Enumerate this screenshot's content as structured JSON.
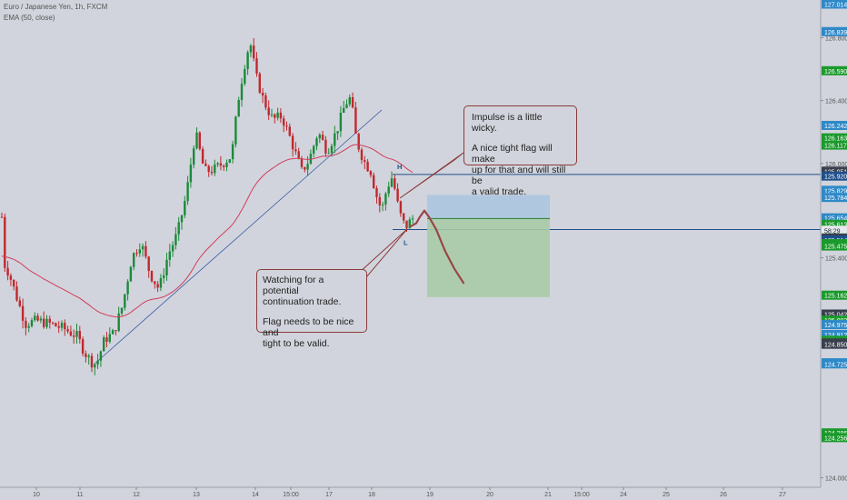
{
  "chart_data": {
    "type": "candlestick",
    "symbol": "Euro / Japanese Yen, 1h, FXCM",
    "indicator": "EMA (50, close)",
    "ylim": [
      123.94,
      127.04
    ],
    "x_ticks": [
      "10",
      "11",
      "12",
      "13",
      "14",
      "15:00",
      "17",
      "18",
      "19",
      "20",
      "21",
      "15:00",
      "24",
      "25",
      "26",
      "27"
    ],
    "y_ticks": [
      "126.800",
      "126.400",
      "126.000",
      "125.400",
      "124.000"
    ],
    "price_tags": [
      {
        "text": "127.014",
        "value": 127.014,
        "color": "#2e89c8"
      },
      {
        "text": "126.839",
        "value": 126.839,
        "color": "#2e89c8"
      },
      {
        "text": "126.590",
        "value": 126.59,
        "color": "#1b9a2c"
      },
      {
        "text": "126.242",
        "value": 126.242,
        "color": "#2e89c8"
      },
      {
        "text": "126.163",
        "value": 126.163,
        "color": "#1b9a2c"
      },
      {
        "text": "126.117",
        "value": 126.117,
        "color": "#1b9a2c"
      },
      {
        "text": "125.951",
        "value": 125.951,
        "color": "#3a3f4e"
      },
      {
        "text": "125.920",
        "value": 125.92,
        "color": "#1f4f8a"
      },
      {
        "text": "125.829",
        "value": 125.829,
        "color": "#2e89c8"
      },
      {
        "text": "125.784",
        "value": 125.784,
        "color": "#2e89c8"
      },
      {
        "text": "125.654",
        "value": 125.654,
        "color": "#2e89c8"
      },
      {
        "text": "125.613",
        "value": 125.613,
        "color": "#1b9a2c"
      },
      {
        "text": "58:29",
        "value": 125.575,
        "color": "#e6e8ee",
        "text_color": "#1f2433"
      },
      {
        "text": "125.526",
        "value": 125.526,
        "color": "#1b9a2c"
      },
      {
        "text": "125.525",
        "value": 125.525,
        "color": "#3a3f4e"
      },
      {
        "text": "125.514",
        "value": 125.514,
        "color": "#1f4f8a"
      },
      {
        "text": "125.490",
        "value": 125.49,
        "color": "#1b9a2c"
      },
      {
        "text": "125.475",
        "value": 125.475,
        "color": "#1b9a2c"
      },
      {
        "text": "125.162",
        "value": 125.162,
        "color": "#1b9a2c"
      },
      {
        "text": "125.042",
        "value": 125.042,
        "color": "#3a3f4e"
      },
      {
        "text": "125.003",
        "value": 125.003,
        "color": "#1b9a2c"
      },
      {
        "text": "124.975",
        "value": 124.975,
        "color": "#2e89c8"
      },
      {
        "text": "124.912",
        "value": 124.912,
        "color": "#2e89c8"
      },
      {
        "text": "124.875",
        "value": 124.875,
        "color": "#1b9a2c"
      },
      {
        "text": "124.859",
        "value": 124.859,
        "color": "#1b9a2c"
      },
      {
        "text": "124.858",
        "value": 124.858,
        "color": "#3a3f4e"
      },
      {
        "text": "124.850",
        "value": 124.85,
        "color": "#3a3f4e"
      },
      {
        "text": "124.732",
        "value": 124.732,
        "color": "#2e89c8"
      },
      {
        "text": "124.725",
        "value": 124.725,
        "color": "#2e89c8"
      },
      {
        "text": "124.286",
        "value": 124.286,
        "color": "#1b9a2c"
      },
      {
        "text": "124.256",
        "value": 124.256,
        "color": "#1b9a2c"
      }
    ],
    "horizontal_levels": [
      125.93,
      125.58
    ],
    "level_labels": [
      {
        "text": "H",
        "value": 125.94
      },
      {
        "text": "L",
        "value": 125.55
      }
    ],
    "position_zone": {
      "entry": 125.65,
      "target": 125.8,
      "stop": 125.15
    },
    "colors": {
      "up": "#1b8a3a",
      "down": "#c0282d",
      "ema": "#d23c5b",
      "trend": "#3f5fa8",
      "level": "#1f4f8a",
      "projection": "#9a4646",
      "target_zone": "#aac4e0",
      "stop_zone": "#a8cba8"
    },
    "annotations": [
      {
        "lines": [
          "Impulse is a little wicky.",
          "A nice tight flag will make\nup for that and will still be\na valid trade."
        ]
      },
      {
        "lines": [
          "Watching for a potential\ncontinuation trade.",
          "Flag needs to be nice and\ntight to be valid."
        ]
      }
    ]
  }
}
